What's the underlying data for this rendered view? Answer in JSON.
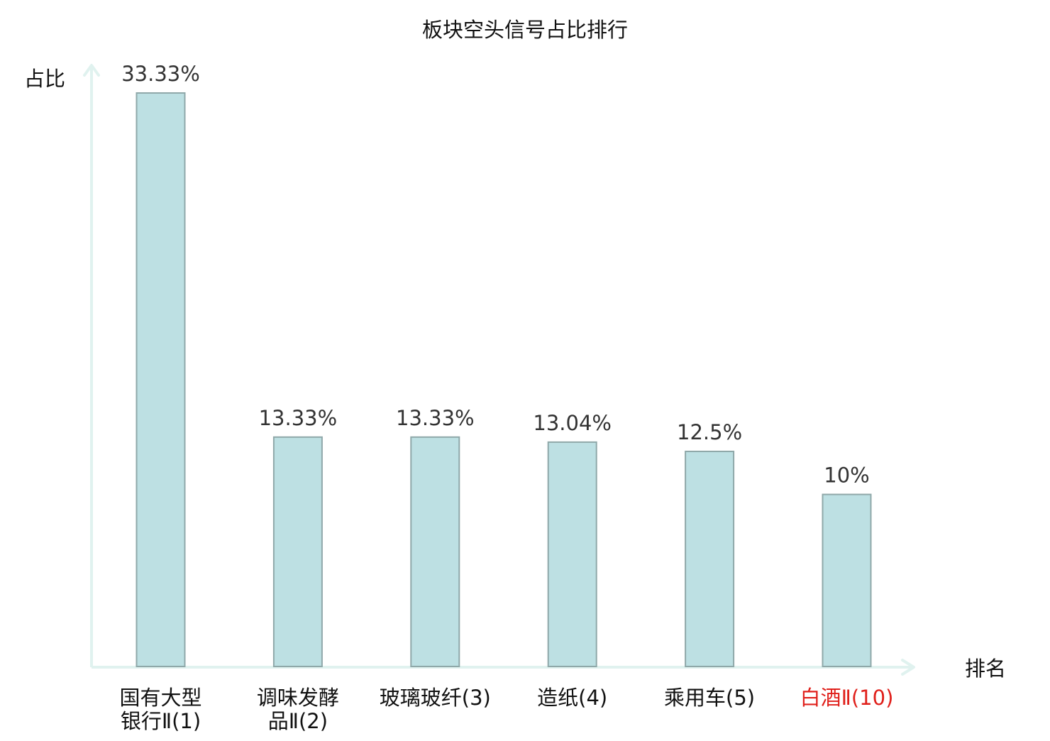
{
  "chart_data": {
    "type": "bar",
    "title": "板块空头信号占比排行",
    "ylabel": "占比",
    "xlabel": "排名",
    "categories": [
      [
        "国有大型",
        "银行Ⅱ(1)"
      ],
      [
        "调味发酵",
        "品Ⅱ(2)"
      ],
      [
        "玻璃玻纤(3)"
      ],
      [
        "造纸(4)"
      ],
      [
        "乘用车(5)"
      ],
      [
        "白酒Ⅱ(10)"
      ]
    ],
    "highlight_category_index": 5,
    "values": [
      33.33,
      13.33,
      13.33,
      13.04,
      12.5,
      10
    ],
    "value_labels": [
      "33.33%",
      "13.33%",
      "13.33%",
      "13.04%",
      "12.5%",
      "10%"
    ],
    "ylim": [
      0,
      35
    ],
    "grid": false,
    "legend": "none",
    "colors": {
      "bar_fill": "#bde0e3",
      "bar_stroke": "#8fa8a9",
      "axis": "#e0f2ef",
      "text": "#111111",
      "value_label": "#333333",
      "highlight": "#e0201b"
    }
  }
}
